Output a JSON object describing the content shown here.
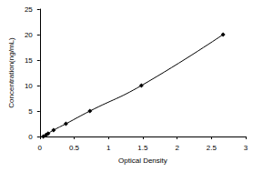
{
  "chart_data": {
    "type": "line",
    "x_label": "Optical Density",
    "y_label": "Concentration(ng/mL)",
    "x": [
      0.05,
      0.09,
      0.12,
      0.2,
      0.38,
      0.73,
      1.48,
      2.67
    ],
    "values": [
      0,
      0.3,
      0.6,
      1.25,
      2.5,
      5,
      10,
      20
    ],
    "color": "#000000",
    "marker": "diamond",
    "line_style": "solid",
    "xlim": [
      0,
      3
    ],
    "xticks": [
      0,
      0.5,
      1,
      1.5,
      2,
      2.5,
      3
    ],
    "ylim": [
      0,
      25
    ],
    "yticks": [
      0,
      5,
      10,
      15,
      20,
      25
    ],
    "grid": false
  }
}
